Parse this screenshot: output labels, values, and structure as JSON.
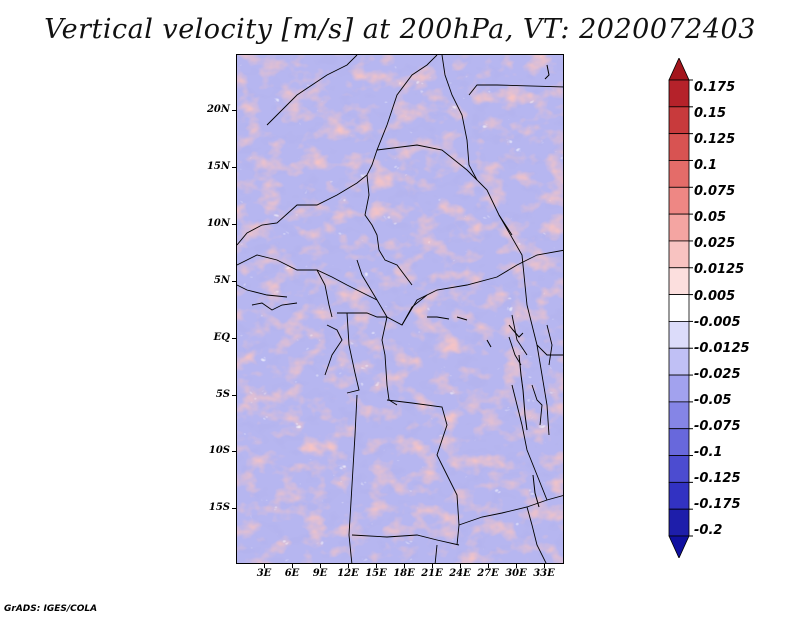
{
  "title": "Vertical velocity [m/s] at 200hPa, VT: 2020072403",
  "footer": "GrADS: IGES/COLA",
  "map": {
    "lat_labels": [
      "20N",
      "15N",
      "10N",
      "5N",
      "EQ",
      "5S",
      "10S",
      "15S"
    ],
    "lon_labels": [
      "3E",
      "6E",
      "9E",
      "12E",
      "15E",
      "18E",
      "21E",
      "24E",
      "27E",
      "30E",
      "33E"
    ],
    "lat_range": [
      -19.5,
      24.5
    ],
    "lon_range": [
      0,
      35
    ]
  },
  "colorbar": {
    "levels": [
      "0.175",
      "0.15",
      "0.125",
      "0.1",
      "0.075",
      "0.05",
      "0.025",
      "0.0125",
      "0.005",
      "-0.005",
      "-0.0125",
      "-0.025",
      "-0.05",
      "-0.075",
      "-0.1",
      "-0.125",
      "-0.175",
      "-0.2"
    ],
    "colors": [
      "#a3151c",
      "#b5222a",
      "#c83a3c",
      "#d85352",
      "#e46c69",
      "#ee8784",
      "#f4a5a2",
      "#f8c3c1",
      "#fcdfde",
      "#ffffff",
      "#dcdcfa",
      "#c0c0f5",
      "#a2a2ee",
      "#8585e6",
      "#6868dc",
      "#4c4cd0",
      "#3232c2",
      "#1e1eaa",
      "#1010a0"
    ]
  }
}
